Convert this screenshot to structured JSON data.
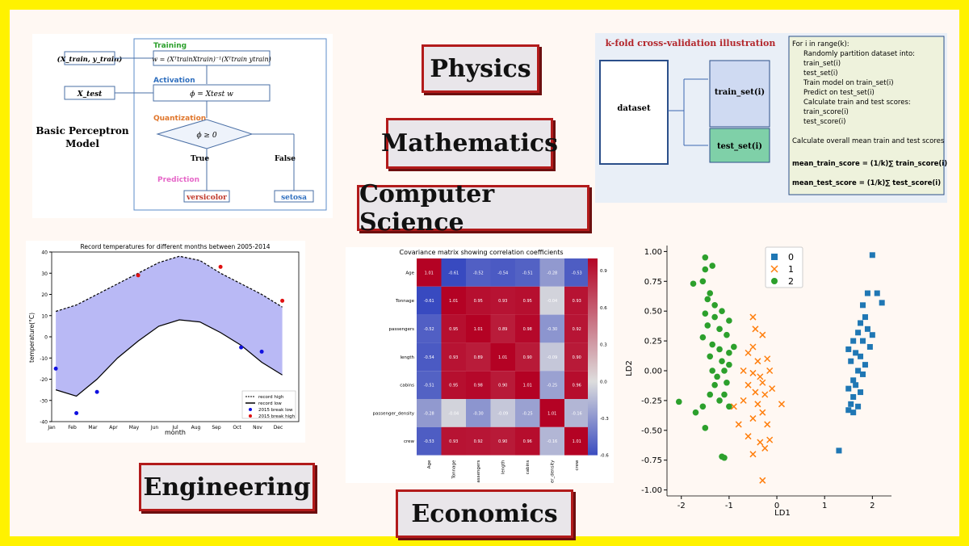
{
  "labels": {
    "physics": "Physics",
    "mathematics": "Mathematics",
    "computer_science": "Computer Science",
    "engineering": "Engineering",
    "economics": "Economics"
  },
  "perceptron": {
    "title_line1": "Basic Perceptron",
    "title_line2": "Model",
    "input_train": "(X_train, y_train)",
    "input_test": "X_test",
    "stage_training": "Training",
    "stage_activation": "Activation",
    "stage_quantization": "Quantization",
    "stage_prediction": "Prediction",
    "eq_training": "w = (XᵀtrainXtrain)⁻¹(Xᵀtrain ytrain)",
    "eq_activation": "ϕ = Xtest w",
    "condition": "ϕ ≥ 0",
    "branch_true": "True",
    "branch_false": "False",
    "out_true": "versicolor",
    "out_false": "setosa"
  },
  "kfold": {
    "title": "k-fold cross-validation illustration",
    "dataset": "dataset",
    "train_set": "train_set(i)",
    "test_set": "test_set(i)",
    "code_lines": [
      "For i in range(k):",
      "    Randomly partition dataset into:",
      "    train_set(i)",
      "    test_set(i)",
      "    Train model on train_set(i)",
      "    Predict on test_set(i)",
      "    Calculate train and test scores:",
      "    train_score(i)",
      "    test_score(i)",
      "",
      "Calculate overall mean train and test scores",
      "",
      "mean_train_score = (1/k)∑ train_score(i)",
      "",
      "mean_test_score = (1/k)∑ test_score(i)"
    ],
    "colors": {
      "train": "#cfdaf2",
      "test": "#7fd0a8",
      "bg": "#e9eff7",
      "code_bg": "#eef2dc"
    }
  },
  "temperature_chart": {
    "title": "Record temperatures for different months between 2005-2014",
    "xlabel": "month",
    "ylabel": "temperature(°C)",
    "x_ticks": [
      "Jan",
      "Feb",
      "Mar",
      "Apr",
      "May",
      "Jun",
      "Jul",
      "Aug",
      "Sep",
      "Oct",
      "Nov",
      "Dec"
    ],
    "y_ticks": [
      "40",
      "30",
      "20",
      "10",
      "0",
      "-10",
      "-20",
      "-30",
      "-40"
    ],
    "legend": [
      "record high",
      "record low",
      "2015 break low",
      "2015 break high"
    ]
  },
  "heatmap": {
    "title": "Covariance matrix showing correlation coefficients",
    "colorbar_ticks": [
      "0.9",
      "0.6",
      "0.3",
      "0.0",
      "-0.3",
      "-0.6"
    ]
  },
  "lda_chart": {
    "xlabel": "LD1",
    "ylabel": "LD2",
    "x_ticks": [
      "-2",
      "-1",
      "0",
      "1",
      "2"
    ],
    "y_ticks": [
      "1.00",
      "0.75",
      "0.50",
      "0.25",
      "0.00",
      "-0.25",
      "-0.50",
      "-0.75",
      "-1.00"
    ],
    "legend": [
      "0",
      "1",
      "2"
    ],
    "colors": [
      "#1f77b4",
      "#ff7f0e",
      "#2ca02c"
    ]
  },
  "chart_data": [
    {
      "type": "line",
      "title": "Record temperatures for different months between 2005-2014",
      "xlabel": "month",
      "ylabel": "temperature(°C)",
      "ylim": [
        -40,
        40
      ],
      "categories": [
        "Jan",
        "Feb",
        "Mar",
        "Apr",
        "May",
        "Jun",
        "Jul",
        "Aug",
        "Sep",
        "Oct",
        "Nov",
        "Dec"
      ],
      "series": [
        {
          "name": "record high",
          "values": [
            12,
            15,
            20,
            25,
            30,
            35,
            38,
            36,
            30,
            25,
            20,
            14
          ]
        },
        {
          "name": "record low",
          "values": [
            -25,
            -28,
            -20,
            -10,
            -2,
            5,
            8,
            7,
            2,
            -4,
            -12,
            -18
          ]
        },
        {
          "name": "2015 break low",
          "values": [
            -15,
            -36,
            -26,
            null,
            null,
            null,
            null,
            null,
            null,
            -5,
            -7,
            null
          ]
        },
        {
          "name": "2015 break high",
          "values": [
            null,
            null,
            null,
            null,
            29,
            null,
            null,
            null,
            33,
            null,
            null,
            17
          ]
        }
      ],
      "legend_position": "lower-right"
    },
    {
      "type": "heatmap",
      "title": "Covariance matrix showing correlation coefficients",
      "rows": [
        "Age",
        "Tonnage",
        "passengers",
        "length",
        "cabins",
        "passenger_density",
        "crew"
      ],
      "cols": [
        "Age",
        "Tonnage",
        "passengers",
        "length",
        "cabins",
        "passenger_density",
        "crew"
      ],
      "values": [
        [
          "1.01",
          "-0.61",
          "-0.52",
          "-0.54",
          "-0.51",
          "-0.28",
          "-0.53"
        ],
        [
          "-0.61",
          "1.01",
          "0.95",
          "0.93",
          "0.95",
          "-0.04",
          "0.93"
        ],
        [
          "-0.52",
          "0.95",
          "1.01",
          "0.89",
          "0.98",
          "-0.30",
          "0.92"
        ],
        [
          "-0.54",
          "0.93",
          "0.89",
          "1.01",
          "0.90",
          "-0.09",
          "0.90"
        ],
        [
          "-0.51",
          "0.95",
          "0.98",
          "0.90",
          "1.01",
          "-0.25",
          "0.96"
        ],
        [
          "-0.28",
          "-0.04",
          "-0.30",
          "-0.09",
          "-0.25",
          "1.01",
          "-0.16"
        ],
        [
          "-0.53",
          "0.93",
          "0.92",
          "0.90",
          "0.96",
          "-0.16",
          "1.01"
        ]
      ],
      "zlim": [
        -0.6,
        1.0
      ]
    },
    {
      "type": "scatter",
      "xlabel": "LD1",
      "ylabel": "LD2",
      "xlim": [
        -2.3,
        2.4
      ],
      "ylim": [
        -1.05,
        1.05
      ],
      "legend_position": "top-center",
      "series": [
        {
          "name": "0",
          "marker": "square",
          "points": [
            [
              2.0,
              0.97
            ],
            [
              2.2,
              0.57
            ],
            [
              2.1,
              0.65
            ],
            [
              1.9,
              0.65
            ],
            [
              1.8,
              0.55
            ],
            [
              1.85,
              0.45
            ],
            [
              1.75,
              0.4
            ],
            [
              1.9,
              0.35
            ],
            [
              2.0,
              0.3
            ],
            [
              1.7,
              0.32
            ],
            [
              1.8,
              0.25
            ],
            [
              1.95,
              0.2
            ],
            [
              1.6,
              0.25
            ],
            [
              1.5,
              0.18
            ],
            [
              1.65,
              0.15
            ],
            [
              1.75,
              0.12
            ],
            [
              1.85,
              0.05
            ],
            [
              1.55,
              0.08
            ],
            [
              1.7,
              0.0
            ],
            [
              1.8,
              -0.03
            ],
            [
              1.6,
              -0.08
            ],
            [
              1.65,
              -0.12
            ],
            [
              1.5,
              -0.15
            ],
            [
              1.75,
              -0.18
            ],
            [
              1.6,
              -0.22
            ],
            [
              1.55,
              -0.28
            ],
            [
              1.7,
              -0.3
            ],
            [
              1.6,
              -0.35
            ],
            [
              1.5,
              -0.33
            ],
            [
              1.3,
              -0.67
            ]
          ]
        },
        {
          "name": "1",
          "marker": "x",
          "points": [
            [
              -0.5,
              0.45
            ],
            [
              -0.45,
              0.35
            ],
            [
              -0.3,
              0.3
            ],
            [
              -0.5,
              0.2
            ],
            [
              -0.6,
              0.15
            ],
            [
              -0.4,
              0.08
            ],
            [
              -0.2,
              0.1
            ],
            [
              -0.7,
              0.0
            ],
            [
              -0.5,
              -0.02
            ],
            [
              -0.35,
              -0.05
            ],
            [
              -0.15,
              0.0
            ],
            [
              -0.3,
              -0.1
            ],
            [
              -0.6,
              -0.12
            ],
            [
              -0.45,
              -0.18
            ],
            [
              -0.25,
              -0.2
            ],
            [
              -0.1,
              -0.15
            ],
            [
              -0.4,
              -0.28
            ],
            [
              0.1,
              -0.28
            ],
            [
              -0.3,
              -0.35
            ],
            [
              -0.5,
              -0.4
            ],
            [
              -0.2,
              -0.45
            ],
            [
              -0.8,
              -0.45
            ],
            [
              -0.6,
              -0.55
            ],
            [
              -0.35,
              -0.6
            ],
            [
              -0.25,
              -0.65
            ],
            [
              -0.5,
              -0.7
            ],
            [
              -0.3,
              -0.92
            ],
            [
              -0.9,
              -0.3
            ],
            [
              -0.7,
              -0.25
            ],
            [
              -0.15,
              -0.58
            ]
          ]
        },
        {
          "name": "2",
          "marker": "circle",
          "points": [
            [
              -1.5,
              0.95
            ],
            [
              -1.35,
              0.88
            ],
            [
              -1.5,
              0.85
            ],
            [
              -1.75,
              0.73
            ],
            [
              -1.55,
              0.75
            ],
            [
              -1.4,
              0.65
            ],
            [
              -1.45,
              0.6
            ],
            [
              -1.3,
              0.55
            ],
            [
              -1.15,
              0.5
            ],
            [
              -1.5,
              0.48
            ],
            [
              -1.3,
              0.45
            ],
            [
              -1.0,
              0.42
            ],
            [
              -1.45,
              0.38
            ],
            [
              -1.2,
              0.35
            ],
            [
              -1.05,
              0.3
            ],
            [
              -1.55,
              0.28
            ],
            [
              -1.35,
              0.22
            ],
            [
              -1.2,
              0.18
            ],
            [
              -1.0,
              0.15
            ],
            [
              -0.9,
              0.2
            ],
            [
              -1.4,
              0.12
            ],
            [
              -1.15,
              0.08
            ],
            [
              -1.0,
              0.05
            ],
            [
              -1.35,
              0.0
            ],
            [
              -1.1,
              0.0
            ],
            [
              -1.25,
              -0.05
            ],
            [
              -1.05,
              -0.1
            ],
            [
              -1.3,
              -0.12
            ],
            [
              -1.1,
              -0.2
            ],
            [
              -1.4,
              -0.2
            ],
            [
              -1.2,
              -0.25
            ],
            [
              -1.55,
              -0.3
            ],
            [
              -1.0,
              -0.3
            ],
            [
              -1.7,
              -0.35
            ],
            [
              -2.05,
              -0.26
            ],
            [
              -1.5,
              -0.48
            ],
            [
              -1.15,
              -0.72
            ],
            [
              -1.1,
              -0.73
            ]
          ]
        }
      ]
    }
  ]
}
